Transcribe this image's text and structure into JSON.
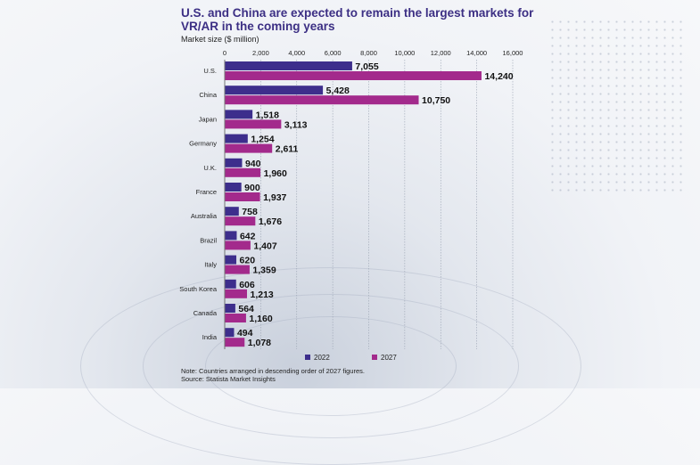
{
  "chart_data": {
    "type": "bar",
    "orientation": "horizontal",
    "title": "U.S. and China are expected to remain the largest markets for VR/AR in the coming years",
    "subtitle": "Market size ($ million)",
    "categories": [
      "U.S.",
      "China",
      "Japan",
      "Germany",
      "U.K.",
      "France",
      "Australia",
      "Brazil",
      "Italy",
      "South Korea",
      "Canada",
      "India"
    ],
    "highlight_category": "India",
    "series": [
      {
        "name": "2022",
        "color": "#3d2e8c",
        "values": [
          7055,
          5428,
          1518,
          1254,
          940,
          900,
          758,
          642,
          620,
          606,
          564,
          494
        ],
        "labels": [
          "7,055",
          "5,428",
          "1,518",
          "1,254",
          "940",
          "900",
          "758",
          "642",
          "620",
          "606",
          "564",
          "494"
        ]
      },
      {
        "name": "2027",
        "color": "#a32a8c",
        "values": [
          14240,
          10750,
          3113,
          2611,
          1960,
          1937,
          1676,
          1407,
          1359,
          1213,
          1160,
          1078
        ],
        "labels": [
          "14,240",
          "10,750",
          "3,113",
          "2,611",
          "1,960",
          "1,937",
          "1,676",
          "1,407",
          "1,359",
          "1,213",
          "1,160",
          "1,078"
        ]
      }
    ],
    "xlim": [
      0,
      16000
    ],
    "xticks": [
      0,
      2000,
      4000,
      6000,
      8000,
      10000,
      12000,
      14000,
      16000
    ],
    "xtick_labels": [
      "0",
      "2,000",
      "4,000",
      "6,000",
      "8,000",
      "10,000",
      "12,000",
      "14,000",
      "16,000"
    ],
    "grid": true,
    "legend_position": "bottom",
    "highlight_color": "#c8102e"
  },
  "notes": {
    "line1": "Note: Countries arranged in descending order of 2027 figures.",
    "line2": "Source: Statista Market Insights"
  }
}
